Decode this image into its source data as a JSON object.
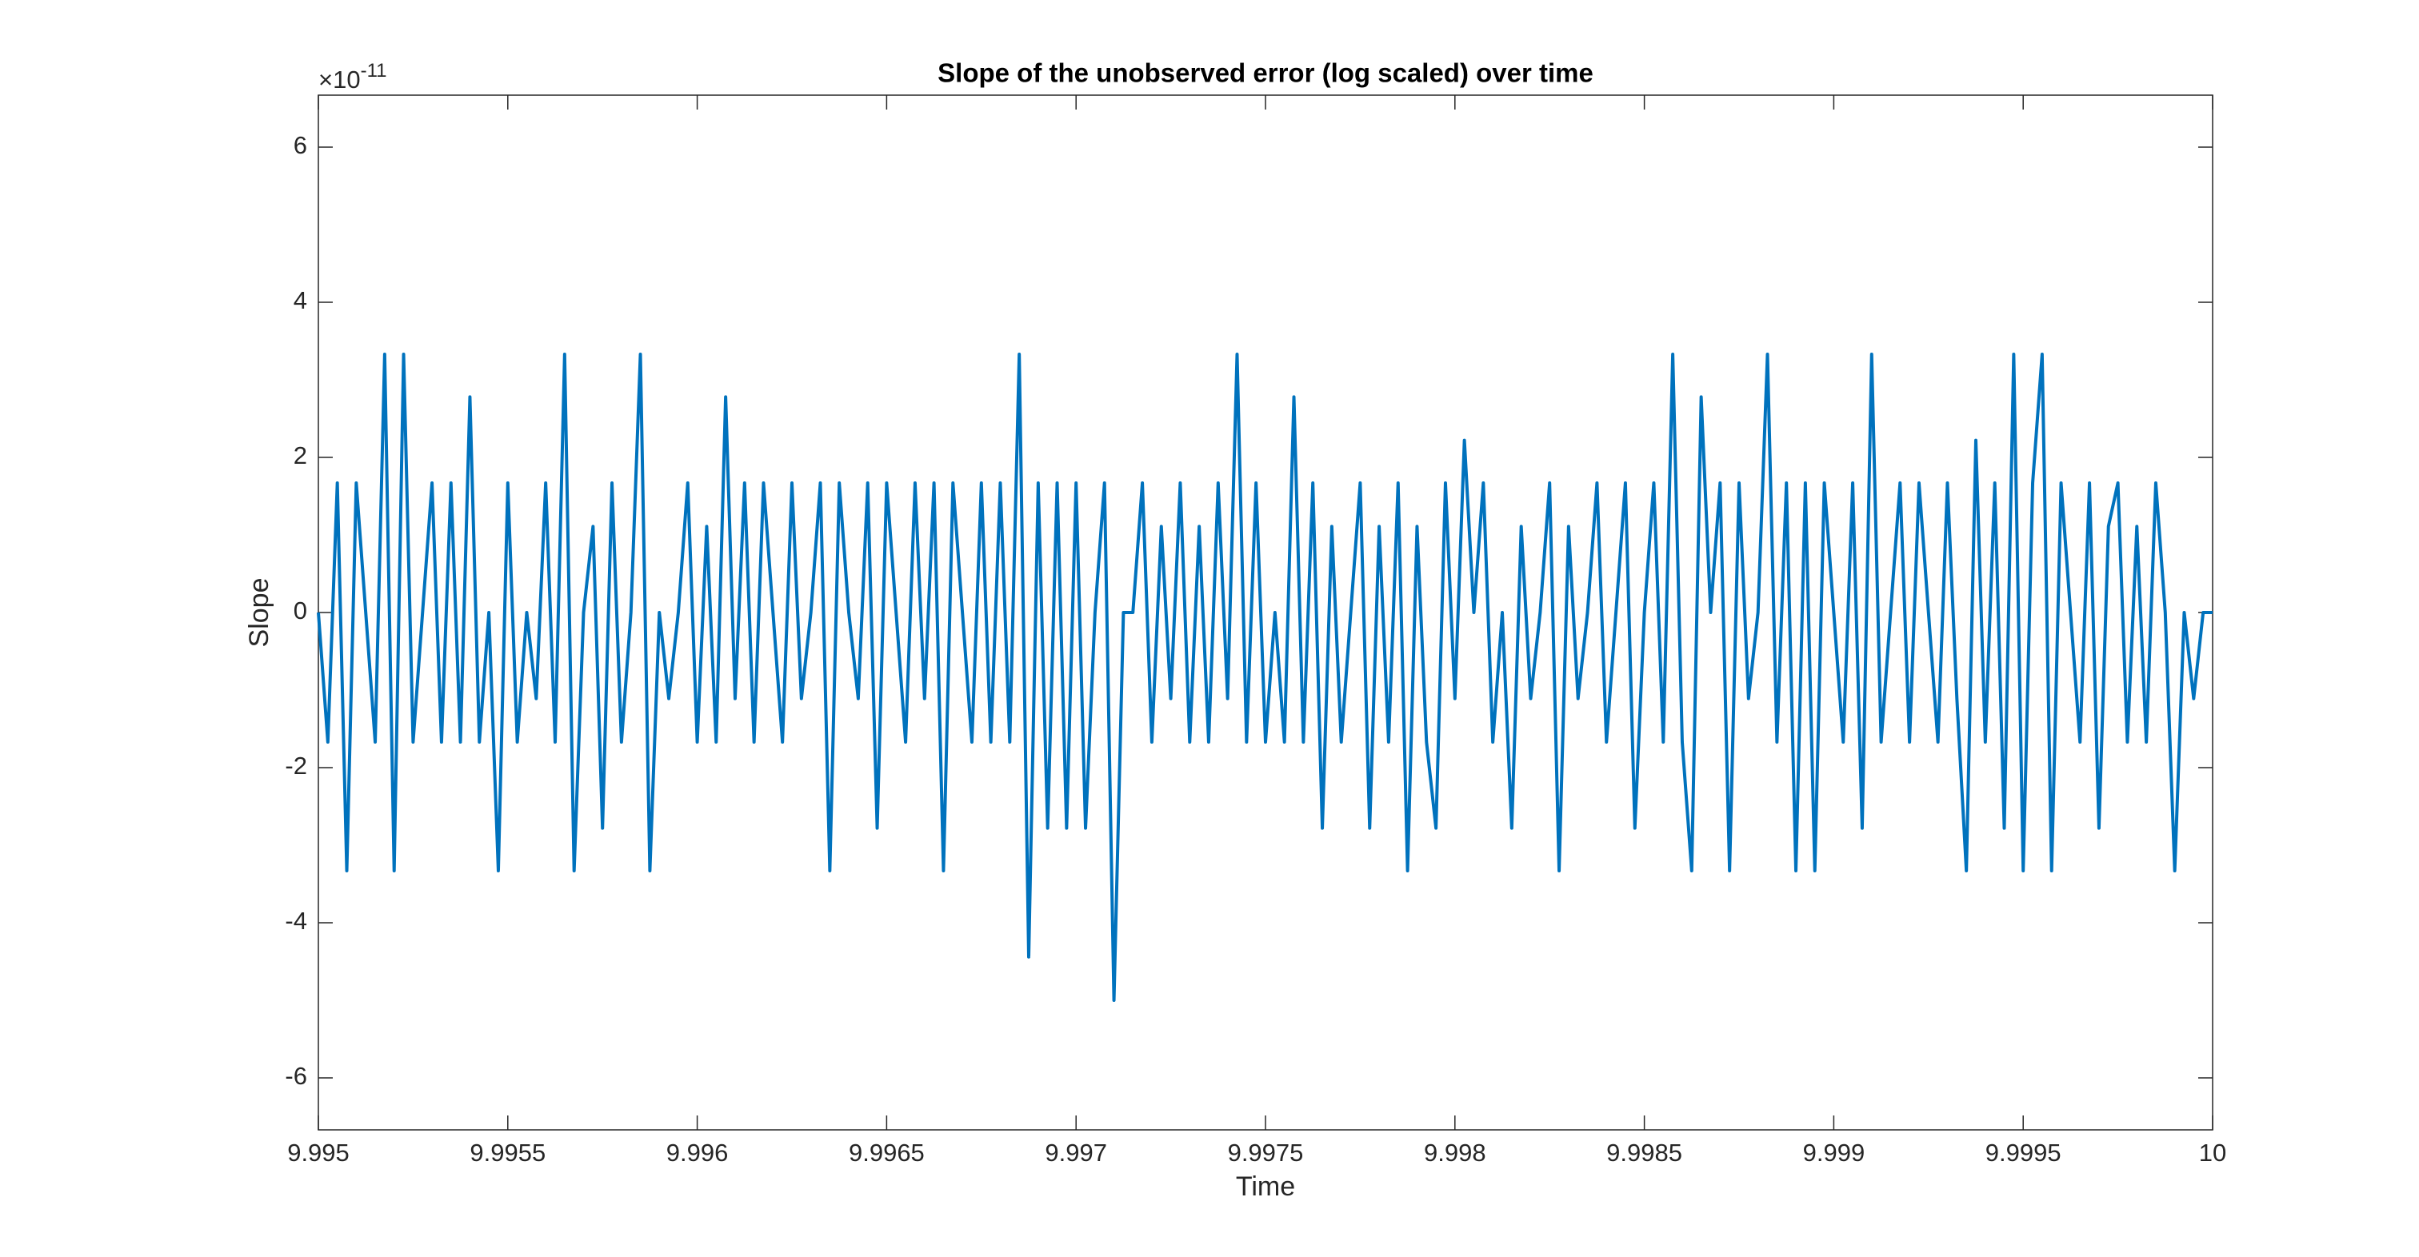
{
  "chart_data": {
    "type": "line",
    "title": "Slope of the unobserved error (log scaled) over time",
    "xlabel": "Time",
    "ylabel": "Slope",
    "y_multiplier": {
      "base": "×10",
      "exponent": "-11"
    },
    "xlim": [
      9.995,
      10
    ],
    "xticks": [
      9.995,
      9.9955,
      9.996,
      9.9965,
      9.997,
      9.9975,
      9.998,
      9.9985,
      9.999,
      9.9995,
      10
    ],
    "ylim": [
      -6.67,
      6.67
    ],
    "yticks": [
      -6,
      -4,
      -2,
      0,
      2,
      4,
      6
    ],
    "grid": false,
    "box": true,
    "x": [
      9.995,
      9.995025,
      9.99505,
      9.995075,
      9.9951,
      9.995125,
      9.99515,
      9.995175,
      9.9952,
      9.995225,
      9.99525,
      9.995275,
      9.9953,
      9.995325,
      9.99535,
      9.995375,
      9.9954,
      9.995425,
      9.99545,
      9.995475,
      9.9955,
      9.995525,
      9.99555,
      9.995575,
      9.9956,
      9.995625,
      9.99565,
      9.995675,
      9.9957,
      9.995725,
      9.99575,
      9.995775,
      9.9958,
      9.995825,
      9.99585,
      9.995875,
      9.9959,
      9.995925,
      9.99595,
      9.995975,
      9.996,
      9.996025,
      9.99605,
      9.996075,
      9.9961,
      9.996125,
      9.99615,
      9.996175,
      9.9962,
      9.996225,
      9.99625,
      9.996275,
      9.9963,
      9.996325,
      9.99635,
      9.996375,
      9.9964,
      9.996425,
      9.99645,
      9.996475,
      9.9965,
      9.996525,
      9.99655,
      9.996575,
      9.9966,
      9.996625,
      9.99665,
      9.996675,
      9.9967,
      9.996725,
      9.99675,
      9.996775,
      9.9968,
      9.996825,
      9.99685,
      9.996875,
      9.9969,
      9.996925,
      9.99695,
      9.996975,
      9.997,
      9.997025,
      9.99705,
      9.997075,
      9.9971,
      9.997125,
      9.99715,
      9.997175,
      9.9972,
      9.997225,
      9.99725,
      9.997275,
      9.9973,
      9.997325,
      9.99735,
      9.997375,
      9.9974,
      9.997425,
      9.99745,
      9.997475,
      9.9975,
      9.997525,
      9.99755,
      9.997575,
      9.9976,
      9.997625,
      9.99765,
      9.997675,
      9.9977,
      9.997725,
      9.99775,
      9.997775,
      9.9978,
      9.997825,
      9.99785,
      9.997875,
      9.9979,
      9.997925,
      9.99795,
      9.997975,
      9.998,
      9.998025,
      9.99805,
      9.998075,
      9.9981,
      9.998125,
      9.99815,
      9.998175,
      9.9982,
      9.998225,
      9.99825,
      9.998275,
      9.9983,
      9.998325,
      9.99835,
      9.998375,
      9.9984,
      9.998425,
      9.99845,
      9.998475,
      9.9985,
      9.998525,
      9.99855,
      9.998575,
      9.9986,
      9.998625,
      9.99865,
      9.998675,
      9.9987,
      9.998725,
      9.99875,
      9.998775,
      9.9988,
      9.998825,
      9.99885,
      9.998875,
      9.9989,
      9.998925,
      9.99895,
      9.998975,
      9.999,
      9.999025,
      9.99905,
      9.999075,
      9.9991,
      9.999125,
      9.99915,
      9.999175,
      9.9992,
      9.999225,
      9.99925,
      9.999275,
      9.9993,
      9.999325,
      9.99935,
      9.999375,
      9.9994,
      9.999425,
      9.99945,
      9.999475,
      9.9995,
      9.999525,
      9.99955,
      9.999575,
      9.9996,
      9.999625,
      9.99965,
      9.999675,
      9.9997,
      9.999725,
      9.99975,
      9.999775,
      9.9998,
      9.999825,
      9.99985,
      9.999875,
      9.9999,
      9.999925,
      9.99995,
      9.999975,
      10
    ],
    "series": [
      {
        "name": "Slope",
        "color": "#0072bd",
        "values": [
          0,
          -1.67,
          1.67,
          -3.33,
          1.67,
          0,
          -1.67,
          3.33,
          -3.33,
          3.33,
          -1.67,
          0,
          1.67,
          -1.67,
          1.67,
          -1.67,
          2.78,
          -1.67,
          0,
          -3.33,
          1.67,
          -1.67,
          0,
          -1.11,
          1.67,
          -1.67,
          3.33,
          -3.33,
          0,
          1.11,
          -2.78,
          1.67,
          -1.67,
          0,
          3.33,
          -3.33,
          0,
          -1.11,
          0,
          1.67,
          -1.67,
          1.11,
          -1.67,
          2.78,
          -1.11,
          1.67,
          -1.67,
          1.67,
          0,
          -1.67,
          1.67,
          -1.11,
          0,
          1.67,
          -3.33,
          1.67,
          0,
          -1.11,
          1.67,
          -2.78,
          1.67,
          0,
          -1.67,
          1.67,
          -1.11,
          1.67,
          -3.33,
          1.67,
          0,
          -1.67,
          1.67,
          -1.67,
          1.67,
          -1.67,
          3.33,
          -4.44,
          1.67,
          -2.78,
          1.67,
          -2.78,
          1.67,
          -2.78,
          0,
          1.67,
          -5.0,
          0,
          0,
          1.67,
          -1.67,
          1.11,
          -1.11,
          1.67,
          -1.67,
          1.11,
          -1.67,
          1.67,
          -1.11,
          3.33,
          -1.67,
          1.67,
          -1.67,
          0,
          -1.67,
          2.78,
          -1.67,
          1.67,
          -2.78,
          1.11,
          -1.67,
          0,
          1.67,
          -2.78,
          1.11,
          -1.67,
          1.67,
          -3.33,
          1.11,
          -1.67,
          -2.78,
          1.67,
          -1.11,
          2.22,
          0,
          1.67,
          -1.67,
          0,
          -2.78,
          1.11,
          -1.11,
          0,
          1.67,
          -3.33,
          1.11,
          -1.11,
          0,
          1.67,
          -1.67,
          0,
          1.67,
          -2.78,
          0,
          1.67,
          -1.67,
          3.33,
          -1.67,
          -3.33,
          2.78,
          0,
          1.67,
          -3.33,
          1.67,
          -1.11,
          0,
          3.33,
          -1.67,
          1.67,
          -3.33,
          1.67,
          -3.33,
          1.67,
          0,
          -1.67,
          1.67,
          -2.78,
          3.33,
          -1.67,
          0,
          1.67,
          -1.67,
          1.67,
          0,
          -1.67,
          1.67,
          -1.11,
          -3.33,
          2.22,
          -1.67,
          1.67,
          -2.78,
          3.33,
          -3.33,
          1.67,
          3.33,
          -3.33,
          1.67,
          0,
          -1.67,
          1.67,
          -2.78,
          1.11,
          1.67,
          -1.67,
          1.11,
          -1.67,
          1.67,
          0,
          -3.33,
          0,
          -1.11,
          0,
          0
        ]
      }
    ]
  }
}
